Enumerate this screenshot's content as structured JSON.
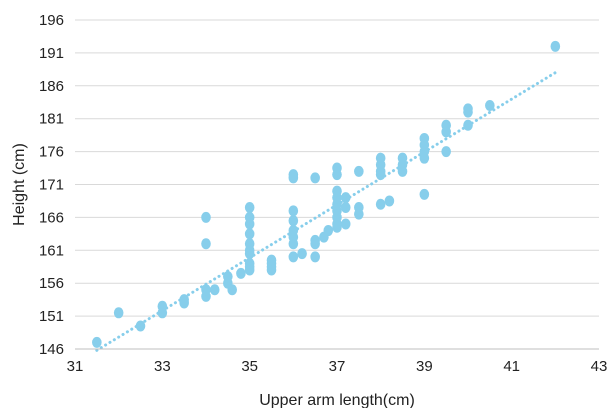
{
  "chart_data": {
    "type": "scatter",
    "title": "",
    "xlabel": "Upper arm length(cm)",
    "ylabel": "Height (cm)",
    "xlim": [
      31,
      43
    ],
    "ylim": [
      146,
      196
    ],
    "xticks": [
      "31",
      "33",
      "35",
      "37",
      "39",
      "41",
      "43"
    ],
    "yticks": [
      "146",
      "151",
      "156",
      "161",
      "166",
      "171",
      "176",
      "181",
      "186",
      "191",
      "196"
    ],
    "grid": "horizontal",
    "legend": "none",
    "marker_color": "#87CEEB",
    "trendline": {
      "style": "dotted",
      "color": "#87CEEB",
      "from": [
        31.5,
        145.8
      ],
      "to": [
        42,
        188
      ]
    },
    "points": [
      [
        31.5,
        147
      ],
      [
        32,
        151.5
      ],
      [
        32.5,
        149.5
      ],
      [
        33,
        151.5
      ],
      [
        33,
        152.5
      ],
      [
        33.5,
        153
      ],
      [
        33.5,
        153.5
      ],
      [
        34,
        154
      ],
      [
        34,
        155
      ],
      [
        34.2,
        155
      ],
      [
        34,
        162
      ],
      [
        34,
        166
      ],
      [
        34.5,
        156
      ],
      [
        34.5,
        157
      ],
      [
        34.6,
        155
      ],
      [
        34.8,
        157.5
      ],
      [
        35,
        158
      ],
      [
        35,
        158.5
      ],
      [
        35,
        159
      ],
      [
        35,
        160.5
      ],
      [
        35,
        161
      ],
      [
        35,
        162
      ],
      [
        35,
        163.5
      ],
      [
        35,
        165
      ],
      [
        35,
        166
      ],
      [
        35,
        167.5
      ],
      [
        35.5,
        158
      ],
      [
        35.5,
        158.5
      ],
      [
        35.5,
        159
      ],
      [
        35.5,
        159.5
      ],
      [
        36,
        160
      ],
      [
        36,
        162
      ],
      [
        36,
        163
      ],
      [
        36,
        164
      ],
      [
        36,
        165.5
      ],
      [
        36,
        167
      ],
      [
        36,
        172
      ],
      [
        36,
        172.5
      ],
      [
        36.2,
        160.5
      ],
      [
        36.5,
        160
      ],
      [
        36.5,
        162
      ],
      [
        36.5,
        162.5
      ],
      [
        36.5,
        172
      ],
      [
        36.7,
        163
      ],
      [
        36.8,
        164
      ],
      [
        37,
        164.5
      ],
      [
        37,
        165
      ],
      [
        37,
        166
      ],
      [
        37,
        167
      ],
      [
        37,
        168
      ],
      [
        37,
        169
      ],
      [
        37,
        170
      ],
      [
        37,
        172.5
      ],
      [
        37,
        173.5
      ],
      [
        37.2,
        165
      ],
      [
        37.2,
        167.5
      ],
      [
        37.2,
        169
      ],
      [
        37.5,
        166.5
      ],
      [
        37.5,
        167.5
      ],
      [
        37.5,
        173
      ],
      [
        38,
        168
      ],
      [
        38,
        172.5
      ],
      [
        38,
        173
      ],
      [
        38,
        174
      ],
      [
        38,
        175
      ],
      [
        38.2,
        168.5
      ],
      [
        38.5,
        173
      ],
      [
        38.5,
        174
      ],
      [
        38.5,
        175
      ],
      [
        39,
        169.5
      ],
      [
        39,
        175
      ],
      [
        39,
        176
      ],
      [
        39,
        177
      ],
      [
        39,
        178
      ],
      [
        39.5,
        176
      ],
      [
        39.5,
        179
      ],
      [
        39.5,
        180
      ],
      [
        40,
        180
      ],
      [
        40,
        182
      ],
      [
        40,
        182.5
      ],
      [
        40.5,
        183
      ],
      [
        42,
        192
      ]
    ]
  }
}
